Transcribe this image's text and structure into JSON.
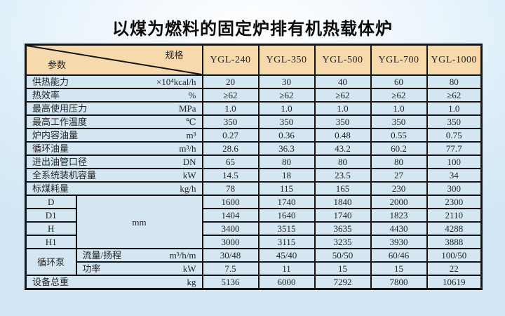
{
  "page": {
    "title": "以煤为燃料的固定炉排有机热载体炉"
  },
  "table": {
    "corner": {
      "top_right": "规格",
      "bottom_left": "参数"
    },
    "models": [
      "YGL-240",
      "YGL-350",
      "YGL-500",
      "YGL-700",
      "YGL-1000"
    ],
    "rows": [
      {
        "label": "供热能力",
        "unit": "×10⁴kcal/h",
        "values": [
          "20",
          "30",
          "40",
          "60",
          "80"
        ]
      },
      {
        "label": "热效率",
        "unit": "%",
        "values": [
          "≥62",
          "≥62",
          "≥62",
          "≥62",
          "≥62"
        ]
      },
      {
        "label": "最高使用压力",
        "unit": "MPa",
        "values": [
          "1.0",
          "1.0",
          "1.0",
          "1.0",
          "1.0"
        ]
      },
      {
        "label": "最高工作温度",
        "unit": "℃",
        "values": [
          "350",
          "350",
          "350",
          "350",
          "350"
        ]
      },
      {
        "label": "炉内容油量",
        "unit": "m³",
        "values": [
          "0.27",
          "0.36",
          "0.48",
          "0.55",
          "0.75"
        ]
      },
      {
        "label": "循环油量",
        "unit": "m³/h",
        "values": [
          "28.6",
          "36.3",
          "43.2",
          "60.2",
          "77.7"
        ]
      },
      {
        "label": "进出油管口径",
        "unit": "DN",
        "values": [
          "65",
          "80",
          "80",
          "80",
          "100"
        ]
      },
      {
        "label": "全系统装机容量",
        "unit": "kW",
        "values": [
          "14.5",
          "18",
          "23.5",
          "27",
          "34"
        ]
      },
      {
        "label": "标煤耗量",
        "unit": "kg/h",
        "values": [
          "78",
          "115",
          "165",
          "230",
          "300"
        ]
      }
    ],
    "dimensions": {
      "unit": "mm",
      "rows": [
        {
          "label": "D",
          "values": [
            "1600",
            "1740",
            "1840",
            "2000",
            "2300"
          ]
        },
        {
          "label": "D1",
          "values": [
            "1404",
            "1640",
            "1740",
            "1823",
            "2110"
          ]
        },
        {
          "label": "H",
          "values": [
            "3400",
            "3515",
            "3635",
            "4430",
            "4288"
          ]
        },
        {
          "label": "H1",
          "values": [
            "3000",
            "3115",
            "3235",
            "3930",
            "3888"
          ]
        }
      ]
    },
    "pump": {
      "label": "循环泵",
      "rows": [
        {
          "label": "流量/扬程",
          "unit": "m³/h/m",
          "values": [
            "30/48",
            "45/40",
            "50/50",
            "60/46",
            "100/50"
          ]
        },
        {
          "label": "功率",
          "unit": "kW",
          "values": [
            "7.5",
            "11",
            "15",
            "15",
            "22"
          ]
        }
      ]
    },
    "total": {
      "label": "设备总重",
      "unit": "kg",
      "values": [
        "5136",
        "6000",
        "7292",
        "7800",
        "10619"
      ]
    }
  },
  "colors": {
    "header_bg": "#f7d9ae",
    "body_bg": "#d4e6f2",
    "border": "#141414",
    "page_bg_edge": "#d2e6f5",
    "page_bg_center": "#ffffff"
  }
}
